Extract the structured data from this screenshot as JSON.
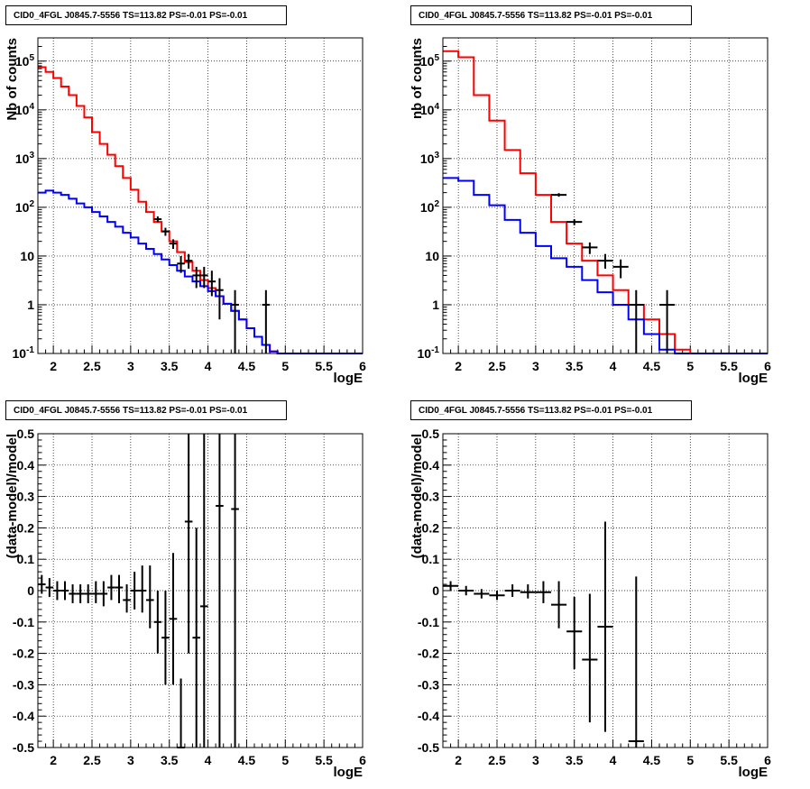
{
  "panels": [
    {
      "id": "p1",
      "title": "CID0_4FGL J0845.7-5556 TS=113.82 PS=-0.01 PS=-0.01",
      "chart_data": {
        "type": "line",
        "title": "CID0_4FGL J0845.7-5556 TS=113.82 PS=-0.01 PS=-0.01",
        "xlabel": "logE",
        "ylabel": "Nb of counts",
        "xlim": [
          1.8,
          6.0
        ],
        "ylim": [
          0.1,
          300000
        ],
        "yscale": "log",
        "grid": true,
        "x_ticks": [
          "2",
          "2.5",
          "3",
          "3.5",
          "4",
          "4.5",
          "5",
          "5.5",
          "6"
        ],
        "y_ticks": [
          "10^{-1}",
          "1",
          "10",
          "10^{2}",
          "10^{3}",
          "10^{4}",
          "10^{5}"
        ],
        "bin_edges": [
          1.8,
          1.9,
          2.0,
          2.1,
          2.2,
          2.3,
          2.4,
          2.5,
          2.6,
          2.7,
          2.8,
          2.9,
          3.0,
          3.1,
          3.2,
          3.3,
          3.4,
          3.5,
          3.6,
          3.7,
          3.8,
          3.9,
          4.0,
          4.1,
          4.2,
          4.3,
          4.4,
          4.5,
          4.6,
          4.7,
          4.8,
          4.9,
          5.0,
          5.1,
          5.2,
          5.3,
          5.4,
          5.5,
          5.6,
          5.7,
          5.8,
          5.9,
          6.0
        ],
        "series": [
          {
            "color": "#ff0000",
            "values": [
              75000,
              60000,
              45000,
              30000,
              20000,
              12000,
              7000,
              3500,
              2000,
              1200,
              700,
              400,
              230,
              130,
              80,
              50,
              32,
              20,
              12,
              7.5,
              5,
              3.2,
              2.2,
              1.5,
              1.05,
              0.75,
              0.5,
              0.33,
              0.22,
              0.15,
              0.11,
              0.1,
              0.1,
              0.1,
              0.1,
              0.1,
              0.1,
              0.1,
              0.1,
              0.1,
              0.1,
              0.1
            ]
          },
          {
            "color": "#0000ff",
            "values": [
              200,
              220,
              200,
              180,
              150,
              120,
              100,
              80,
              65,
              50,
              40,
              30,
              24,
              18,
              14,
              11,
              8.5,
              6.5,
              5,
              3.8,
              3,
              2.4,
              1.9,
              1.5,
              1.05,
              0.75,
              0.5,
              0.33,
              0.22,
              0.15,
              0.11,
              0.1,
              0.1,
              0.1,
              0.1,
              0.1,
              0.1,
              0.1,
              0.1,
              0.1,
              0.1,
              0.1
            ]
          }
        ],
        "points": [
          {
            "x": 3.35,
            "y": 57,
            "xerr": 0.05,
            "ylo": 50,
            "yhi": 65
          },
          {
            "x": 3.45,
            "y": 32,
            "xerr": 0.05,
            "ylo": 26,
            "yhi": 38
          },
          {
            "x": 3.55,
            "y": 18,
            "xerr": 0.05,
            "ylo": 14,
            "yhi": 22
          },
          {
            "x": 3.65,
            "y": 7,
            "xerr": 0.05,
            "ylo": 4.5,
            "yhi": 10
          },
          {
            "x": 3.75,
            "y": 8,
            "xerr": 0.05,
            "ylo": 5.5,
            "yhi": 11
          },
          {
            "x": 3.85,
            "y": 4,
            "xerr": 0.05,
            "ylo": 2.2,
            "yhi": 6
          },
          {
            "x": 3.95,
            "y": 4,
            "xerr": 0.05,
            "ylo": 2.2,
            "yhi": 6
          },
          {
            "x": 4.05,
            "y": 3,
            "xerr": 0.05,
            "ylo": 1.5,
            "yhi": 5
          },
          {
            "x": 4.15,
            "y": 2,
            "xerr": 0.05,
            "ylo": 0.5,
            "yhi": 3.5
          },
          {
            "x": 4.35,
            "y": 1,
            "xerr": 0.05,
            "ylo": 0.1,
            "yhi": 2
          },
          {
            "x": 4.75,
            "y": 1,
            "xerr": 0.05,
            "ylo": 0.1,
            "yhi": 2
          }
        ]
      }
    },
    {
      "id": "p2",
      "title": "CID0_4FGL J0845.7-5556 TS=113.82 PS=-0.01 PS=-0.01",
      "chart_data": {
        "type": "line",
        "title": "CID0_4FGL J0845.7-5556 TS=113.82 PS=-0.01 PS=-0.01",
        "xlabel": "logE",
        "ylabel": "nb of counts",
        "xlim": [
          1.8,
          6.0
        ],
        "ylim": [
          0.1,
          300000
        ],
        "yscale": "log",
        "grid": true,
        "x_ticks": [
          "2",
          "2.5",
          "3",
          "3.5",
          "4",
          "4.5",
          "5",
          "5.5",
          "6"
        ],
        "y_ticks": [
          "10^{-1}",
          "1",
          "10",
          "10^{2}",
          "10^{3}",
          "10^{4}",
          "10^{5}"
        ],
        "bin_edges": [
          1.8,
          2.0,
          2.2,
          2.4,
          2.6,
          2.8,
          3.0,
          3.2,
          3.4,
          3.6,
          3.8,
          4.0,
          4.2,
          4.4,
          4.6,
          4.8,
          5.0,
          5.2,
          5.4,
          5.6,
          5.8,
          6.0
        ],
        "series": [
          {
            "color": "#ff0000",
            "values": [
              160000,
              120000,
              20000,
              6000,
              1500,
              500,
              180,
              50,
              18,
              8,
              4,
              2,
              1,
              0.5,
              0.25,
              0.12,
              0.1,
              0.1,
              0.1,
              0.1,
              0.1
            ]
          },
          {
            "color": "#0000ff",
            "values": [
              400,
              350,
              180,
              110,
              55,
              30,
              16,
              9,
              6,
              3.2,
              1.8,
              1,
              0.5,
              0.25,
              0.12,
              0.1,
              0.1,
              0.1,
              0.1,
              0.1,
              0.1
            ]
          }
        ],
        "points": [
          {
            "x": 3.3,
            "y": 180,
            "xerr": 0.1,
            "ylo": 165,
            "yhi": 195
          },
          {
            "x": 3.5,
            "y": 50,
            "xerr": 0.1,
            "ylo": 43,
            "yhi": 57
          },
          {
            "x": 3.7,
            "y": 15,
            "xerr": 0.1,
            "ylo": 11,
            "yhi": 19
          },
          {
            "x": 3.9,
            "y": 8,
            "xerr": 0.1,
            "ylo": 5.5,
            "yhi": 11
          },
          {
            "x": 4.1,
            "y": 6,
            "xerr": 0.1,
            "ylo": 3.5,
            "yhi": 8.5
          },
          {
            "x": 4.3,
            "y": 1,
            "xerr": 0.1,
            "ylo": 0.1,
            "yhi": 2
          },
          {
            "x": 4.7,
            "y": 1,
            "xerr": 0.1,
            "ylo": 0.1,
            "yhi": 2
          }
        ]
      }
    },
    {
      "id": "p3",
      "title": "CID0_4FGL J0845.7-5556 TS=113.82 PS=-0.01 PS=-0.01",
      "chart_data": {
        "type": "scatter",
        "title": "CID0_4FGL J0845.7-5556 TS=113.82 PS=-0.01 PS=-0.01",
        "xlabel": "logE",
        "ylabel": "(data-model)/model",
        "xlim": [
          1.8,
          6.0
        ],
        "ylim": [
          -0.5,
          0.5
        ],
        "yscale": "linear",
        "grid": true,
        "x_ticks": [
          "2",
          "2.5",
          "3",
          "3.5",
          "4",
          "4.5",
          "5",
          "5.5",
          "6"
        ],
        "y_ticks": [
          "-0.5",
          "-0.4",
          "-0.3",
          "-0.2",
          "-0.1",
          "0",
          "0.1",
          "0.2",
          "0.3",
          "0.4",
          "0.5"
        ],
        "points": [
          {
            "x": 1.85,
            "y": 0.02,
            "xerr": 0.05,
            "ylo": -0.01,
            "yhi": 0.05
          },
          {
            "x": 1.95,
            "y": 0.01,
            "xerr": 0.05,
            "ylo": -0.02,
            "yhi": 0.04
          },
          {
            "x": 2.05,
            "y": 0.0,
            "xerr": 0.05,
            "ylo": -0.03,
            "yhi": 0.03
          },
          {
            "x": 2.15,
            "y": 0.0,
            "xerr": 0.05,
            "ylo": -0.03,
            "yhi": 0.03
          },
          {
            "x": 2.25,
            "y": -0.01,
            "xerr": 0.05,
            "ylo": -0.04,
            "yhi": 0.02
          },
          {
            "x": 2.35,
            "y": -0.01,
            "xerr": 0.05,
            "ylo": -0.04,
            "yhi": 0.02
          },
          {
            "x": 2.45,
            "y": -0.01,
            "xerr": 0.05,
            "ylo": -0.04,
            "yhi": 0.02
          },
          {
            "x": 2.55,
            "y": -0.01,
            "xerr": 0.05,
            "ylo": -0.04,
            "yhi": 0.03
          },
          {
            "x": 2.65,
            "y": -0.01,
            "xerr": 0.05,
            "ylo": -0.05,
            "yhi": 0.03
          },
          {
            "x": 2.75,
            "y": 0.01,
            "xerr": 0.05,
            "ylo": -0.03,
            "yhi": 0.05
          },
          {
            "x": 2.85,
            "y": 0.01,
            "xerr": 0.05,
            "ylo": -0.04,
            "yhi": 0.05
          },
          {
            "x": 2.95,
            "y": -0.03,
            "xerr": 0.05,
            "ylo": -0.07,
            "yhi": 0.02
          },
          {
            "x": 3.05,
            "y": 0.0,
            "xerr": 0.05,
            "ylo": -0.06,
            "yhi": 0.06
          },
          {
            "x": 3.15,
            "y": 0.0,
            "xerr": 0.05,
            "ylo": -0.07,
            "yhi": 0.08
          },
          {
            "x": 3.25,
            "y": -0.03,
            "xerr": 0.05,
            "ylo": -0.12,
            "yhi": 0.08
          },
          {
            "x": 3.35,
            "y": -0.1,
            "xerr": 0.05,
            "ylo": -0.2,
            "yhi": 0.0
          },
          {
            "x": 3.45,
            "y": -0.15,
            "xerr": 0.05,
            "ylo": -0.3,
            "yhi": -0.0
          },
          {
            "x": 3.55,
            "y": -0.09,
            "xerr": 0.05,
            "ylo": -0.3,
            "yhi": 0.12
          },
          {
            "x": 3.65,
            "y": -0.5,
            "xerr": 0.05,
            "ylo": -0.7,
            "yhi": -0.28
          },
          {
            "x": 3.75,
            "y": 0.22,
            "xerr": 0.05,
            "ylo": -0.2,
            "yhi": 0.65
          },
          {
            "x": 3.85,
            "y": -0.15,
            "xerr": 0.05,
            "ylo": -0.6,
            "yhi": 0.2
          },
          {
            "x": 3.95,
            "y": -0.05,
            "xerr": 0.05,
            "ylo": -0.6,
            "yhi": 0.5
          },
          {
            "x": 4.15,
            "y": 0.27,
            "xerr": 0.05,
            "ylo": -0.6,
            "yhi": 1.0
          },
          {
            "x": 4.35,
            "y": 0.26,
            "xerr": 0.05,
            "ylo": -0.6,
            "yhi": 1.0
          }
        ]
      }
    },
    {
      "id": "p4",
      "title": "CID0_4FGL J0845.7-5556 TS=113.82 PS=-0.01 PS=-0.01",
      "chart_data": {
        "type": "scatter",
        "title": "CID0_4FGL J0845.7-5556 TS=113.82 PS=-0.01 PS=-0.01",
        "xlabel": "logE",
        "ylabel": "(data-model)/model",
        "xlim": [
          1.8,
          6.0
        ],
        "ylim": [
          -0.5,
          0.5
        ],
        "yscale": "linear",
        "grid": true,
        "x_ticks": [
          "2",
          "2.5",
          "3",
          "3.5",
          "4",
          "4.5",
          "5",
          "5.5",
          "6"
        ],
        "y_ticks": [
          "-0.5",
          "-0.4",
          "-0.3",
          "-0.2",
          "-0.1",
          "0",
          "0.1",
          "0.2",
          "0.3",
          "0.4",
          "0.5"
        ],
        "points": [
          {
            "x": 1.9,
            "y": 0.015,
            "xerr": 0.1,
            "ylo": 0.0,
            "yhi": 0.03
          },
          {
            "x": 2.1,
            "y": 0.0,
            "xerr": 0.1,
            "ylo": -0.015,
            "yhi": 0.015
          },
          {
            "x": 2.3,
            "y": -0.01,
            "xerr": 0.1,
            "ylo": -0.025,
            "yhi": 0.005
          },
          {
            "x": 2.5,
            "y": -0.015,
            "xerr": 0.1,
            "ylo": -0.03,
            "yhi": 0.0
          },
          {
            "x": 2.7,
            "y": -0.0,
            "xerr": 0.1,
            "ylo": -0.02,
            "yhi": 0.02
          },
          {
            "x": 2.9,
            "y": -0.005,
            "xerr": 0.1,
            "ylo": -0.025,
            "yhi": 0.02
          },
          {
            "x": 3.1,
            "y": -0.005,
            "xerr": 0.1,
            "ylo": -0.04,
            "yhi": 0.03
          },
          {
            "x": 3.3,
            "y": -0.045,
            "xerr": 0.1,
            "ylo": -0.12,
            "yhi": 0.03
          },
          {
            "x": 3.5,
            "y": -0.13,
            "xerr": 0.1,
            "ylo": -0.25,
            "yhi": -0.02
          },
          {
            "x": 3.7,
            "y": -0.22,
            "xerr": 0.1,
            "ylo": -0.42,
            "yhi": -0.01
          },
          {
            "x": 3.9,
            "y": -0.115,
            "xerr": 0.1,
            "ylo": -0.45,
            "yhi": 0.22
          },
          {
            "x": 4.3,
            "y": -0.48,
            "xerr": 0.1,
            "ylo": -0.8,
            "yhi": 0.045
          }
        ]
      }
    }
  ]
}
